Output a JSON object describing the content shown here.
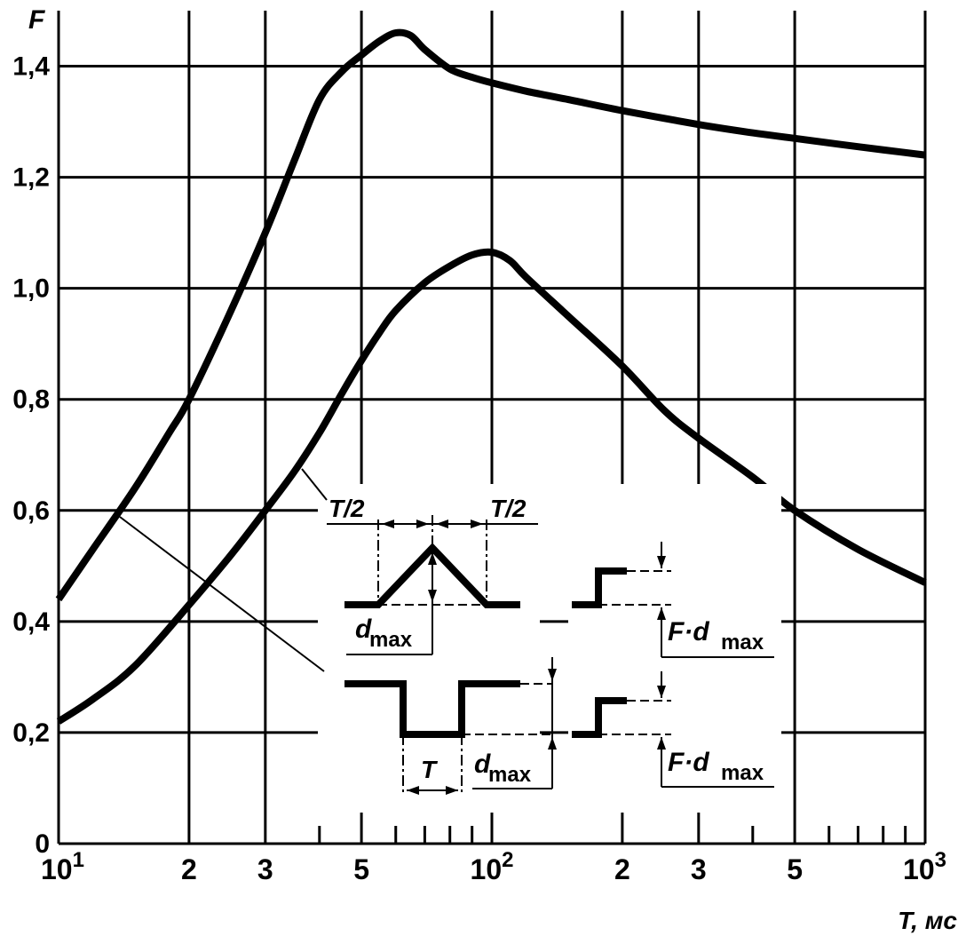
{
  "chart_data": {
    "type": "line",
    "x_scale": "log",
    "xlim": [
      10,
      1000
    ],
    "ylim": [
      0,
      1.5
    ],
    "grid": true,
    "ylabel": "F",
    "xlabel": "T, мс",
    "x_ticks": [
      {
        "value": 10,
        "base": "10",
        "exp": "1"
      },
      {
        "value": 20,
        "base": "2",
        "exp": ""
      },
      {
        "value": 30,
        "base": "3",
        "exp": ""
      },
      {
        "value": 50,
        "base": "5",
        "exp": ""
      },
      {
        "value": 100,
        "base": "10",
        "exp": "2"
      },
      {
        "value": 200,
        "base": "2",
        "exp": ""
      },
      {
        "value": 300,
        "base": "3",
        "exp": ""
      },
      {
        "value": 500,
        "base": "5",
        "exp": ""
      },
      {
        "value": 1000,
        "base": "10",
        "exp": "3"
      }
    ],
    "y_ticks": [
      {
        "value": 0,
        "label": "0"
      },
      {
        "value": 0.2,
        "label": "0,2"
      },
      {
        "value": 0.4,
        "label": "0,4"
      },
      {
        "value": 0.6,
        "label": "0,6"
      },
      {
        "value": 0.8,
        "label": "0,8"
      },
      {
        "value": 1.0,
        "label": "1,0"
      },
      {
        "value": 1.2,
        "label": "1,2"
      },
      {
        "value": 1.4,
        "label": "1,4"
      }
    ],
    "series": [
      {
        "x": [
          10,
          12,
          15,
          18,
          20,
          25,
          30,
          35,
          40,
          45,
          50,
          55,
          60,
          65,
          70,
          80,
          90,
          100,
          120,
          150,
          200,
          300,
          400,
          500,
          700,
          1000
        ],
        "y": [
          0.44,
          0.53,
          0.64,
          0.74,
          0.8,
          0.96,
          1.1,
          1.23,
          1.34,
          1.39,
          1.42,
          1.445,
          1.46,
          1.455,
          1.43,
          1.395,
          1.38,
          1.37,
          1.355,
          1.34,
          1.32,
          1.295,
          1.28,
          1.27,
          1.255,
          1.24
        ]
      },
      {
        "x": [
          10,
          12,
          15,
          20,
          25,
          30,
          35,
          40,
          45,
          50,
          55,
          60,
          70,
          80,
          90,
          100,
          110,
          120,
          150,
          200,
          250,
          300,
          400,
          500,
          700,
          1000
        ],
        "y": [
          0.22,
          0.26,
          0.32,
          0.43,
          0.52,
          0.6,
          0.67,
          0.74,
          0.81,
          0.87,
          0.92,
          0.96,
          1.01,
          1.04,
          1.06,
          1.065,
          1.05,
          1.02,
          0.95,
          0.86,
          0.78,
          0.73,
          0.66,
          0.6,
          0.53,
          0.47
        ]
      }
    ],
    "annotations": {
      "half_period": "T/2",
      "period": "T",
      "d_main": "d",
      "d_sub": "max",
      "f_prefix": "F·d",
      "f_sub": "max"
    }
  }
}
